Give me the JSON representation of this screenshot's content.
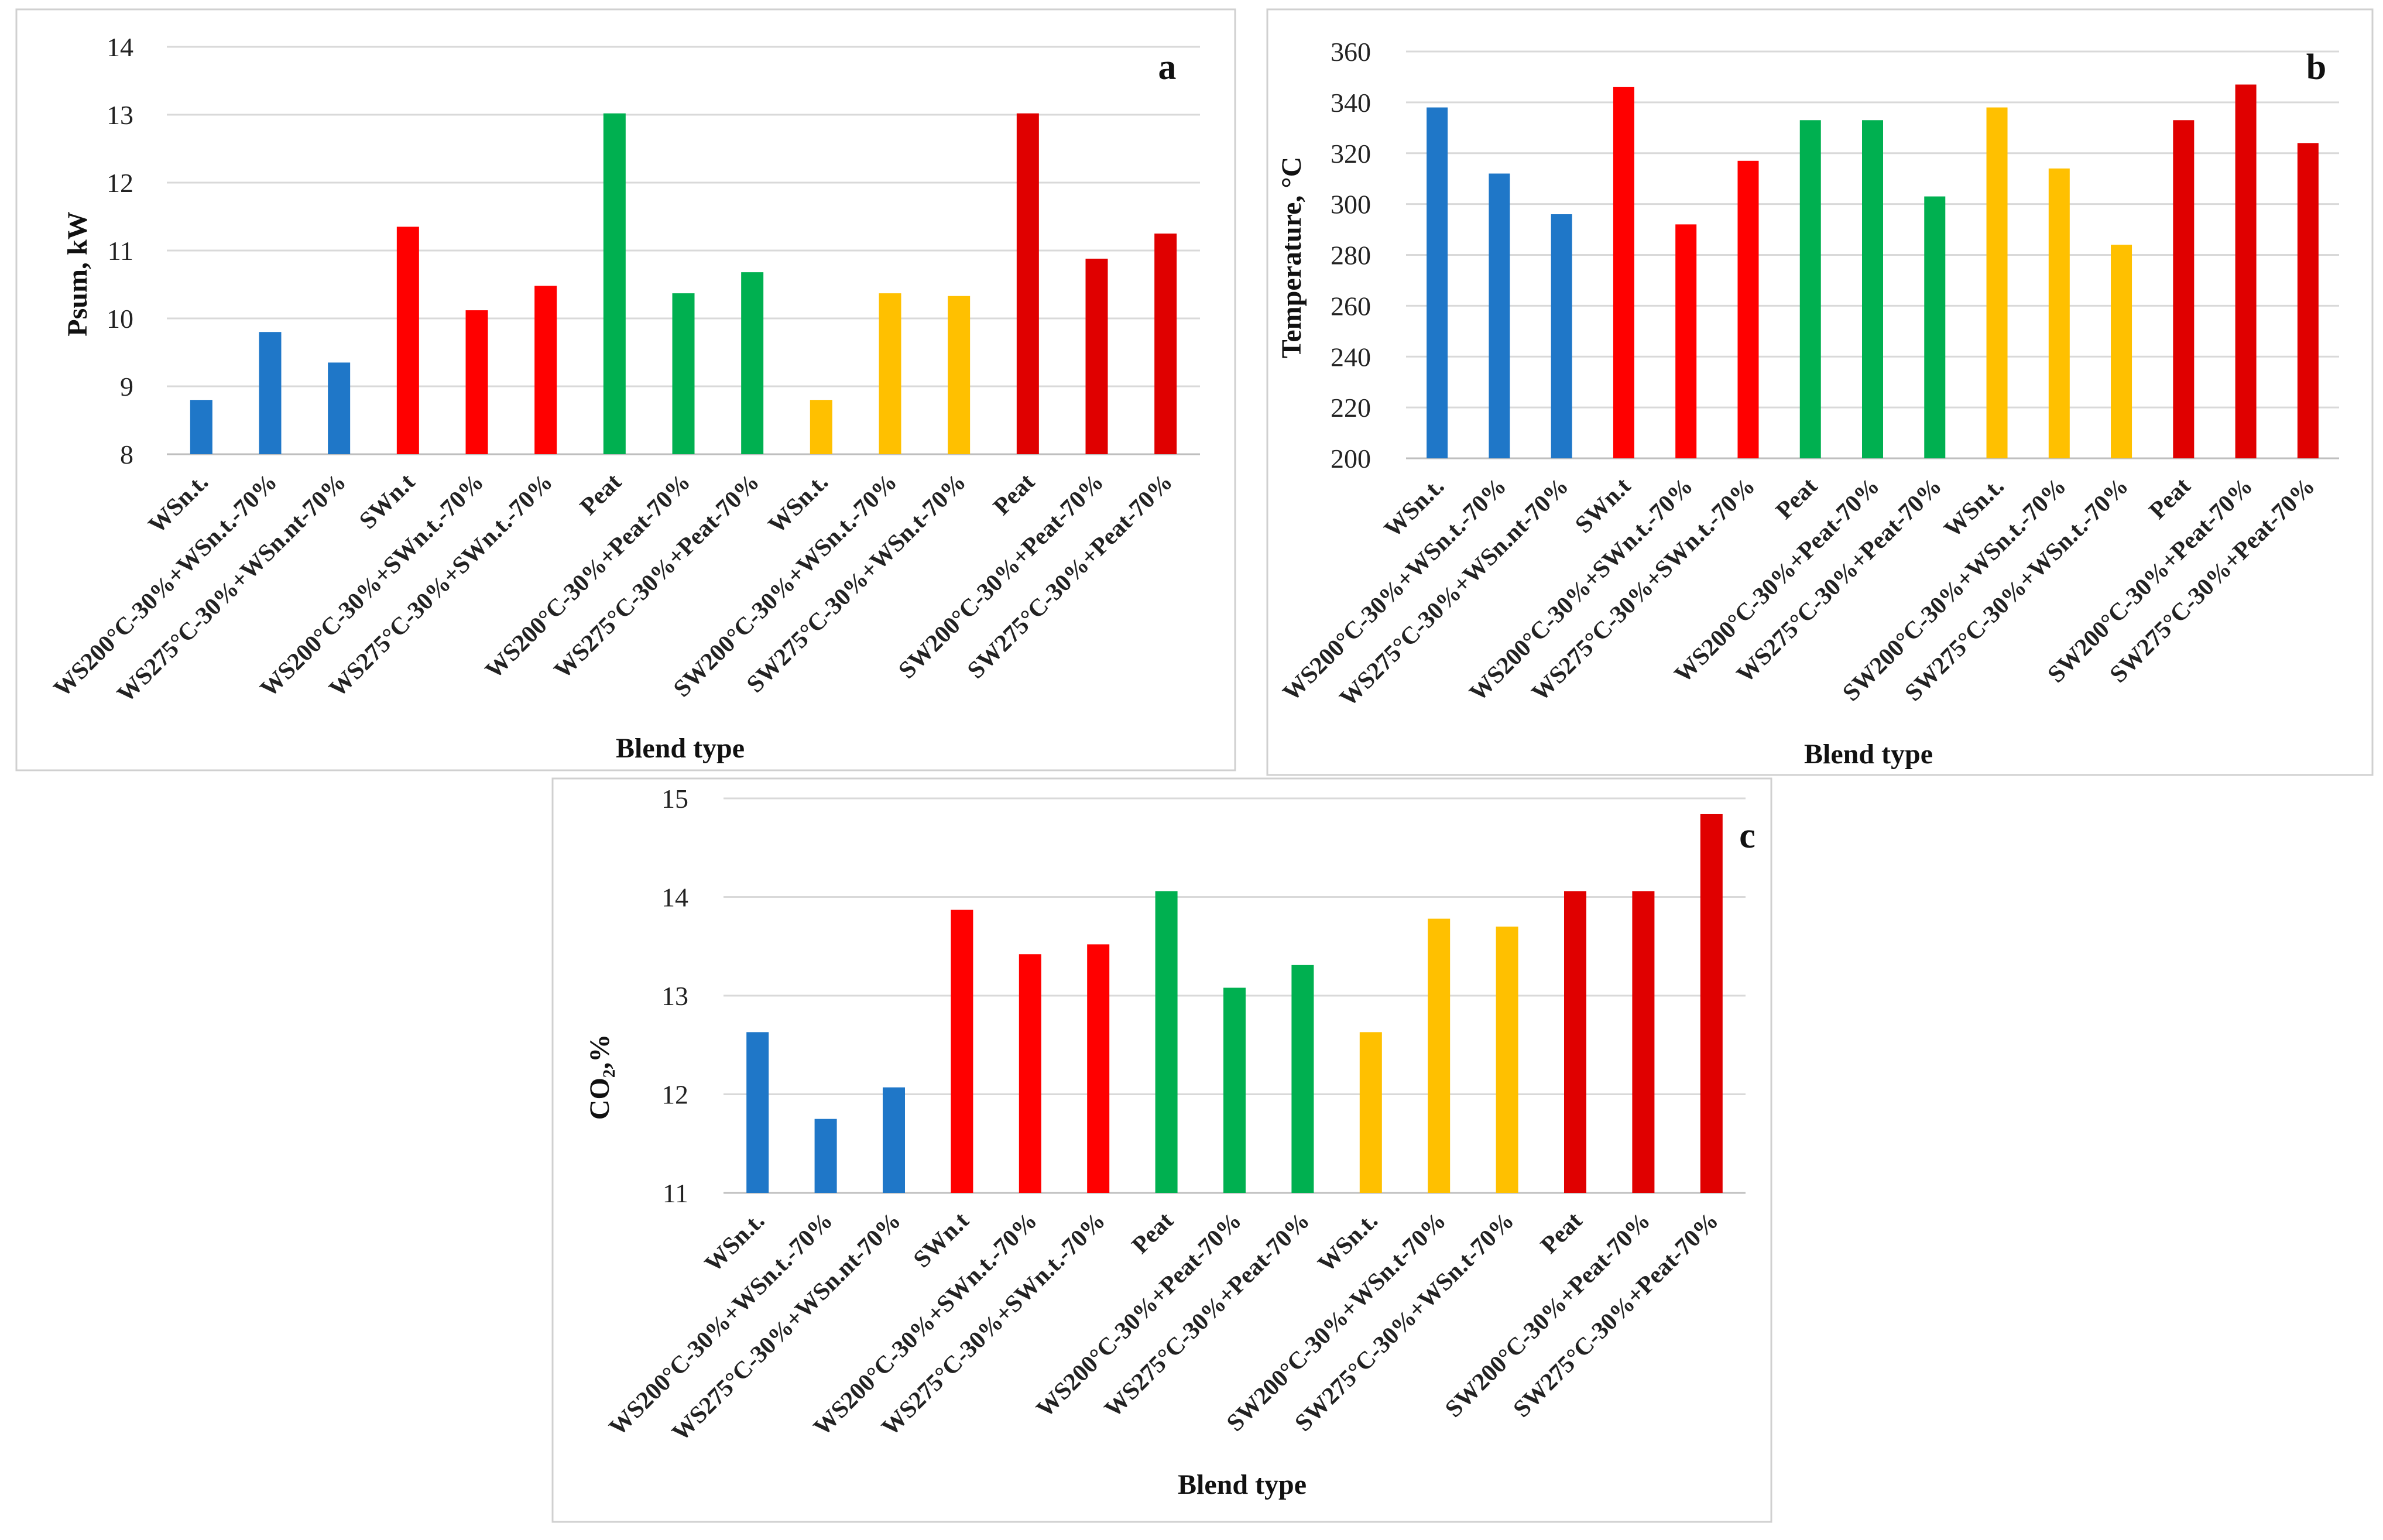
{
  "chart_data": [
    {
      "type": "bar",
      "panel_label": "a",
      "xlabel": "Blend type",
      "ylabel": "Psum, kW",
      "ylim": [
        8,
        14
      ],
      "yticks": [
        8,
        9,
        10,
        11,
        12,
        13,
        14
      ],
      "grid": true,
      "categories": [
        "WSn.t.",
        "WS200°C-30%+WSn.t.-70%",
        "WS275°C-30%+WSn.nt-70%",
        "SWn.t",
        "WS200°C-30%+SWn.t.-70%",
        "WS275°C-30%+SWn.t.-70%",
        "Peat",
        "WS200°C-30%+Peat-70%",
        "WS275°C-30%+Peat-70%",
        "WSn.t.",
        "SW200°C-30%+WSn.t.-70%",
        "SW275°C-30%+WSn.t-70%",
        "Peat",
        "SW200°C-30%+Peat-70%",
        "SW275°C-30%+Peat-70%"
      ],
      "values": [
        8.8,
        9.8,
        9.35,
        11.35,
        10.12,
        10.48,
        13.02,
        10.37,
        10.68,
        8.8,
        10.37,
        10.33,
        13.02,
        10.88,
        11.25
      ],
      "colors": [
        "#1f77c8",
        "#1f77c8",
        "#1f77c8",
        "#ff0000",
        "#ff0000",
        "#ff0000",
        "#00b050",
        "#00b050",
        "#00b050",
        "#ffc000",
        "#ffc000",
        "#ffc000",
        "#e00000",
        "#e00000",
        "#e00000"
      ]
    },
    {
      "type": "bar",
      "panel_label": "b",
      "xlabel": "Blend type",
      "ylabel": "Temperature, °C",
      "ylim": [
        200,
        360
      ],
      "yticks": [
        200,
        220,
        240,
        260,
        280,
        300,
        320,
        340,
        360
      ],
      "grid": true,
      "categories": [
        "WSn.t.",
        "WS200°C-30%+WSn.t.-70%",
        "WS275°C-30%+WSn.nt-70%",
        "SWn.t",
        "WS200°C-30%+SWn.t.-70%",
        "WS275°C-30%+SWn.t.-70%",
        "Peat",
        "WS200°C-30%+Peat-70%",
        "WS275°C-30%+Peat-70%",
        "WSn.t.",
        "SW200°C-30%+WSn.t.-70%",
        "SW275°C-30%+WSn.t.-70%",
        "Peat",
        "SW200°C-30%+Peat-70%",
        "SW275°C-30%+Peat-70%"
      ],
      "values": [
        338,
        312,
        296,
        346,
        292,
        317,
        333,
        333,
        303,
        338,
        314,
        284,
        333,
        347,
        324
      ],
      "colors": [
        "#1f77c8",
        "#1f77c8",
        "#1f77c8",
        "#ff0000",
        "#ff0000",
        "#ff0000",
        "#00b050",
        "#00b050",
        "#00b050",
        "#ffc000",
        "#ffc000",
        "#ffc000",
        "#e00000",
        "#e00000",
        "#e00000"
      ]
    },
    {
      "type": "bar",
      "panel_label": "c",
      "xlabel": "Blend type",
      "ylabel": "CO₂,%",
      "ylim": [
        11,
        15
      ],
      "yticks": [
        11,
        12,
        13,
        14,
        15
      ],
      "grid": true,
      "categories": [
        "WSn.t.",
        "WS200°C-30%+WSn.t.-70%",
        "WS275°C-30%+WSn.nt-70%",
        "SWn.t",
        "WS200°C-30%+SWn.t.-70%",
        "WS275°C-30%+SWn.t.-70%",
        "Peat",
        "WS200°C-30%+Peat-70%",
        "WS275°C-30%+Peat-70%",
        "WSn.t.",
        "SW200°C-30%+WSn.t-70%",
        "SW275°C-30%+WSn.t-70%",
        "Peat",
        "SW200°C-30%+Peat-70%",
        "SW275°C-30%+Peat-70%"
      ],
      "values": [
        12.63,
        11.75,
        12.07,
        13.87,
        13.42,
        13.52,
        14.06,
        13.08,
        13.31,
        12.63,
        13.78,
        13.7,
        14.06,
        14.06,
        14.84
      ],
      "colors": [
        "#1f77c8",
        "#1f77c8",
        "#1f77c8",
        "#ff0000",
        "#ff0000",
        "#ff0000",
        "#00b050",
        "#00b050",
        "#00b050",
        "#ffc000",
        "#ffc000",
        "#ffc000",
        "#e00000",
        "#e00000",
        "#e00000"
      ]
    }
  ]
}
